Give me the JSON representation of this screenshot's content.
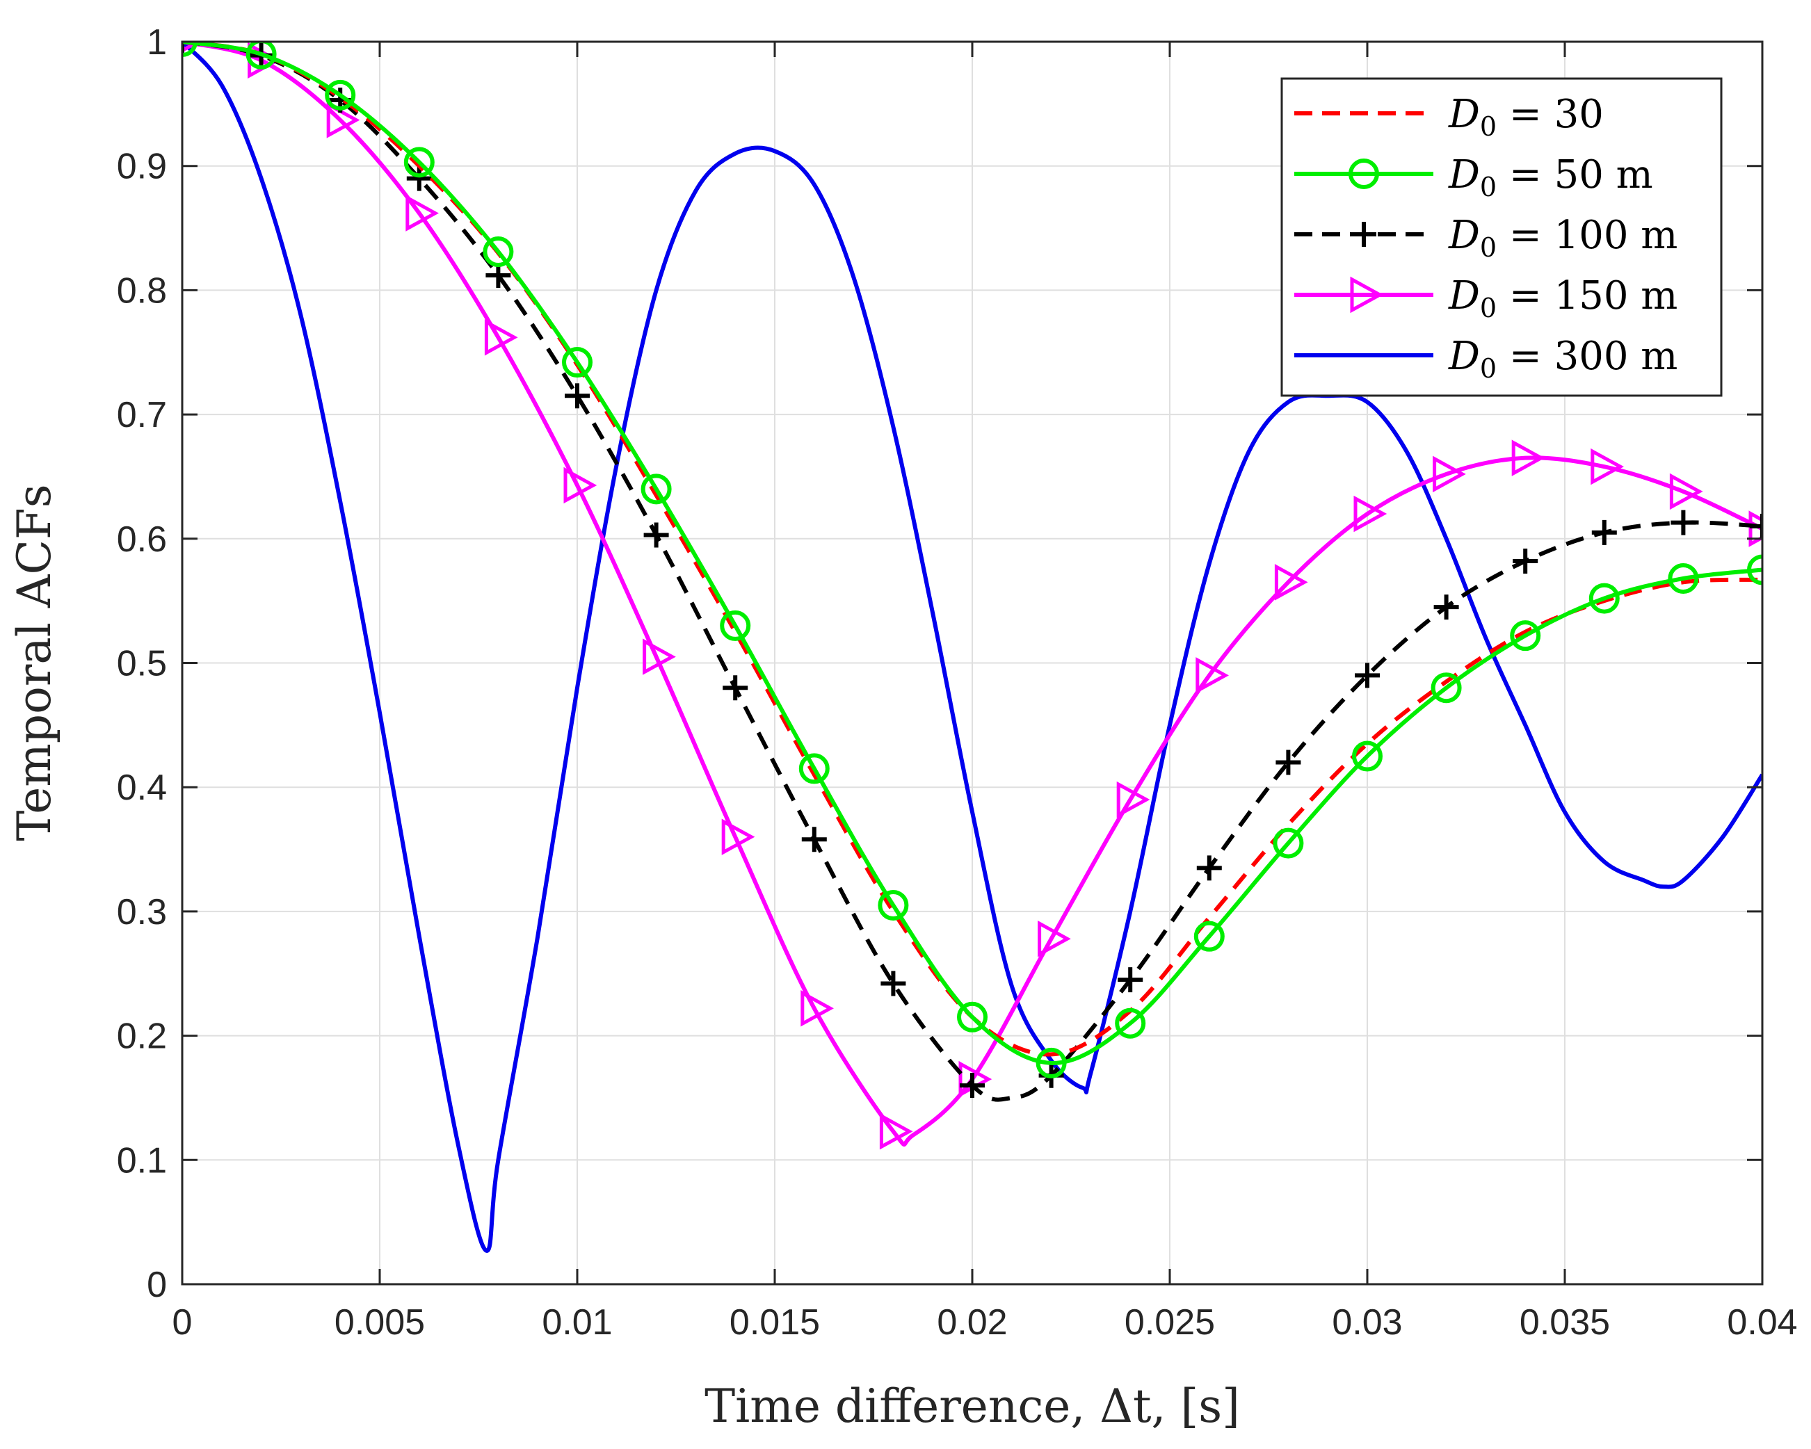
{
  "chart_data": {
    "type": "line",
    "xlabel": "Time difference, Δt, [s]",
    "ylabel": "Temporal ACFs",
    "xlim": [
      0,
      0.04
    ],
    "ylim": [
      0,
      1
    ],
    "xticks": [
      0,
      0.005,
      0.01,
      0.015,
      0.02,
      0.025,
      0.03,
      0.035,
      0.04
    ],
    "xtick_labels": [
      "0",
      "0.005",
      "0.01",
      "0.015",
      "0.02",
      "0.025",
      "0.03",
      "0.035",
      "0.04"
    ],
    "yticks": [
      0,
      0.1,
      0.2,
      0.3,
      0.4,
      0.5,
      0.6,
      0.7,
      0.8,
      0.9,
      1
    ],
    "ytick_labels": [
      "0",
      "0.1",
      "0.2",
      "0.3",
      "0.4",
      "0.5",
      "0.6",
      "0.7",
      "0.8",
      "0.9",
      "1"
    ],
    "grid": true,
    "legend_position": "top-right",
    "series": [
      {
        "name": "D0 = 30",
        "legend_var": "D",
        "legend_sub": "0",
        "legend_rest": " = 30",
        "color": "#ff0000",
        "dash": "dashed",
        "marker": "none",
        "x": [
          0,
          0.002,
          0.004,
          0.006,
          0.008,
          0.01,
          0.012,
          0.014,
          0.016,
          0.018,
          0.02,
          0.022,
          0.024,
          0.026,
          0.028,
          0.03,
          0.032,
          0.034,
          0.036,
          0.038,
          0.04
        ],
        "y": [
          1.0,
          0.99,
          0.955,
          0.9,
          0.83,
          0.74,
          0.635,
          0.525,
          0.41,
          0.3,
          0.215,
          0.185,
          0.22,
          0.295,
          0.37,
          0.435,
          0.485,
          0.525,
          0.55,
          0.565,
          0.567
        ]
      },
      {
        "name": "D0 = 50 m",
        "legend_var": "D",
        "legend_sub": "0",
        "legend_rest": " = 50 m",
        "color": "#00ee00",
        "dash": "solid",
        "marker": "circle",
        "x": [
          0,
          0.002,
          0.004,
          0.006,
          0.008,
          0.01,
          0.012,
          0.014,
          0.016,
          0.018,
          0.02,
          0.022,
          0.024,
          0.026,
          0.028,
          0.03,
          0.032,
          0.034,
          0.036,
          0.038,
          0.04
        ],
        "y": [
          1.0,
          0.99,
          0.957,
          0.903,
          0.831,
          0.742,
          0.64,
          0.53,
          0.415,
          0.305,
          0.215,
          0.178,
          0.21,
          0.28,
          0.355,
          0.425,
          0.48,
          0.522,
          0.552,
          0.568,
          0.575
        ]
      },
      {
        "name": "D0 = 100 m",
        "legend_var": "D",
        "legend_sub": "0",
        "legend_rest": " = 100 m",
        "color": "#000000",
        "dash": "dashed",
        "marker": "plus",
        "x": [
          0,
          0.002,
          0.004,
          0.006,
          0.008,
          0.01,
          0.012,
          0.014,
          0.016,
          0.018,
          0.02,
          0.021,
          0.022,
          0.024,
          0.026,
          0.028,
          0.03,
          0.032,
          0.034,
          0.036,
          0.038,
          0.04
        ],
        "y": [
          1.0,
          0.989,
          0.953,
          0.89,
          0.812,
          0.715,
          0.603,
          0.48,
          0.358,
          0.242,
          0.16,
          0.15,
          0.168,
          0.245,
          0.335,
          0.42,
          0.49,
          0.545,
          0.582,
          0.605,
          0.613,
          0.61
        ]
      },
      {
        "name": "D0 = 150 m",
        "legend_var": "D",
        "legend_sub": "0",
        "legend_rest": " = 150 m",
        "color": "#ff00ff",
        "dash": "solid",
        "marker": "triangle-right",
        "x": [
          0,
          0.002,
          0.004,
          0.006,
          0.008,
          0.01,
          0.012,
          0.014,
          0.016,
          0.018,
          0.0185,
          0.02,
          0.022,
          0.024,
          0.026,
          0.028,
          0.03,
          0.032,
          0.034,
          0.036,
          0.038,
          0.04
        ],
        "y": [
          1.0,
          0.985,
          0.937,
          0.862,
          0.762,
          0.643,
          0.505,
          0.36,
          0.222,
          0.123,
          0.12,
          0.165,
          0.278,
          0.39,
          0.49,
          0.565,
          0.62,
          0.652,
          0.665,
          0.658,
          0.638,
          0.608
        ]
      },
      {
        "name": "D0 = 300 m",
        "legend_var": "D",
        "legend_sub": "0",
        "legend_rest": " = 300 m",
        "color": "#0000ee",
        "dash": "solid",
        "marker": "none",
        "x": [
          0,
          0.001,
          0.002,
          0.003,
          0.004,
          0.005,
          0.006,
          0.007,
          0.0077,
          0.008,
          0.009,
          0.01,
          0.011,
          0.012,
          0.013,
          0.014,
          0.015,
          0.016,
          0.017,
          0.018,
          0.019,
          0.02,
          0.021,
          0.022,
          0.0228,
          0.023,
          0.024,
          0.025,
          0.026,
          0.027,
          0.028,
          0.029,
          0.03,
          0.031,
          0.032,
          0.033,
          0.034,
          0.035,
          0.036,
          0.037,
          0.0375,
          0.038,
          0.039,
          0.04
        ],
        "y": [
          1.0,
          0.965,
          0.89,
          0.78,
          0.63,
          0.46,
          0.28,
          0.11,
          0.027,
          0.1,
          0.28,
          0.48,
          0.66,
          0.8,
          0.88,
          0.91,
          0.912,
          0.885,
          0.81,
          0.69,
          0.54,
          0.38,
          0.24,
          0.18,
          0.158,
          0.17,
          0.3,
          0.45,
          0.58,
          0.67,
          0.71,
          0.715,
          0.71,
          0.67,
          0.6,
          0.52,
          0.45,
          0.38,
          0.34,
          0.325,
          0.32,
          0.325,
          0.36,
          0.41
        ]
      }
    ]
  }
}
